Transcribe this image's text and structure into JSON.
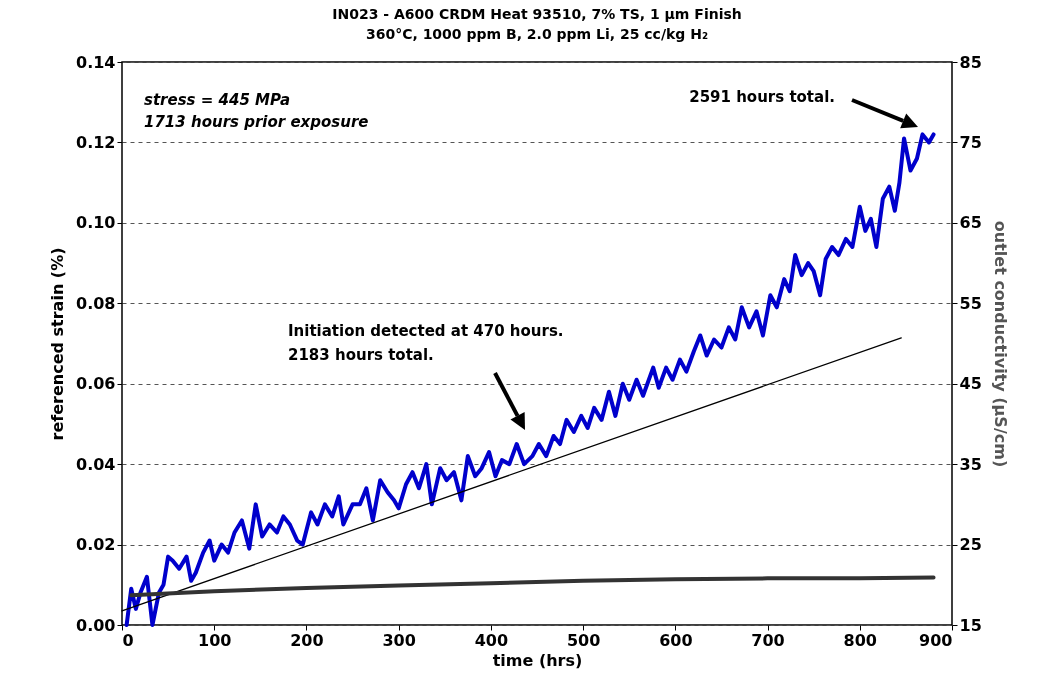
{
  "chart_data": {
    "type": "line",
    "title": "IN023 - A600 CRDM Heat 93510, 7% TS, 1 μm Finish",
    "subtitle": "360°C, 1000 ppm B, 2.0 ppm Li, 25 cc/kg H₂",
    "xlabel": "time (hrs)",
    "ylabel": "referenced strain (%)",
    "y2label": "outlet conductivity (μS/cm)",
    "xlim": [
      0,
      900
    ],
    "xticks": [
      0,
      100,
      200,
      300,
      400,
      500,
      600,
      700,
      800,
      900
    ],
    "ylim": [
      0,
      0.14
    ],
    "yticks": [
      {
        "value": 0,
        "label": "0.00"
      },
      {
        "value": 0.02,
        "label": "0.02"
      },
      {
        "value": 0.04,
        "label": "0.04"
      },
      {
        "value": 0.06,
        "label": "0.06"
      },
      {
        "value": 0.08,
        "label": "0.08"
      },
      {
        "value": 0.1,
        "label": "0.10"
      },
      {
        "value": 0.12,
        "label": "0.12"
      },
      {
        "value": 0.14,
        "label": "0.14"
      }
    ],
    "y2lim": [
      15,
      85
    ],
    "y2ticks": [
      15,
      25,
      35,
      45,
      55,
      65,
      75,
      85
    ],
    "grid": "y",
    "series": [
      {
        "color": "#0000cc",
        "x": [
          5,
          10,
          15,
          20,
          27,
          33,
          40,
          45,
          50,
          55,
          62,
          70,
          75,
          80,
          88,
          95,
          100,
          108,
          115,
          122,
          130,
          138,
          145,
          152,
          160,
          168,
          175,
          182,
          190,
          196,
          205,
          212,
          220,
          228,
          235,
          240,
          250,
          258,
          265,
          272,
          280,
          288,
          295,
          300,
          308,
          315,
          322,
          330,
          336,
          345,
          352,
          360,
          368,
          375,
          383,
          390,
          398,
          405,
          412,
          420,
          428,
          436,
          445,
          452,
          460,
          468,
          475,
          482,
          490,
          498,
          505,
          512,
          520,
          528,
          535,
          543,
          550,
          558,
          565,
          576,
          582,
          590,
          597,
          605,
          612,
          620,
          627,
          634,
          642,
          650,
          658,
          665,
          672,
          680,
          688,
          695,
          703,
          710,
          718,
          724,
          730,
          737,
          744,
          750,
          757,
          763,
          770,
          777,
          785,
          792,
          800,
          806,
          812,
          818,
          825,
          832,
          838,
          843,
          848,
          855,
          862,
          868,
          875,
          880
        ],
        "values": [
          0.0,
          0.009,
          0.004,
          0.008,
          0.012,
          0.0,
          0.008,
          0.01,
          0.017,
          0.016,
          0.014,
          0.017,
          0.011,
          0.013,
          0.018,
          0.021,
          0.016,
          0.02,
          0.018,
          0.023,
          0.026,
          0.019,
          0.03,
          0.022,
          0.025,
          0.023,
          0.027,
          0.025,
          0.021,
          0.02,
          0.028,
          0.025,
          0.03,
          0.027,
          0.032,
          0.025,
          0.03,
          0.03,
          0.034,
          0.026,
          0.036,
          0.033,
          0.031,
          0.029,
          0.035,
          0.038,
          0.034,
          0.04,
          0.03,
          0.039,
          0.036,
          0.038,
          0.031,
          0.042,
          0.037,
          0.039,
          0.043,
          0.037,
          0.041,
          0.04,
          0.045,
          0.04,
          0.042,
          0.045,
          0.042,
          0.047,
          0.045,
          0.051,
          0.048,
          0.052,
          0.049,
          0.054,
          0.051,
          0.058,
          0.052,
          0.06,
          0.056,
          0.061,
          0.057,
          0.064,
          0.059,
          0.064,
          0.061,
          0.066,
          0.063,
          0.068,
          0.072,
          0.067,
          0.071,
          0.069,
          0.074,
          0.071,
          0.079,
          0.074,
          0.078,
          0.072,
          0.082,
          0.079,
          0.086,
          0.083,
          0.092,
          0.087,
          0.09,
          0.088,
          0.082,
          0.091,
          0.094,
          0.092,
          0.096,
          0.094,
          0.104,
          0.098,
          0.101,
          0.094,
          0.106,
          0.109,
          0.103,
          0.11,
          0.121,
          0.113,
          0.116,
          0.122,
          0.12,
          0.122
        ]
      },
      {
        "type": "line",
        "color": "#000000",
        "x": [
          0,
          845
        ],
        "values": [
          0.0035,
          0.0714
        ]
      },
      {
        "color": "#333333",
        "axis": "y2",
        "x": [
          10,
          100,
          200,
          300,
          400,
          500,
          600,
          700,
          800,
          880
        ],
        "values": [
          18.7,
          19.2,
          19.6,
          19.9,
          20.2,
          20.5,
          20.7,
          20.8,
          20.8,
          20.9
        ]
      }
    ],
    "annotations": [
      "stress = 445 MPa",
      "1713 hours prior exposure",
      "Initiation detected at 470 hours.\n2183 hours total.",
      "2591 hours total."
    ]
  }
}
